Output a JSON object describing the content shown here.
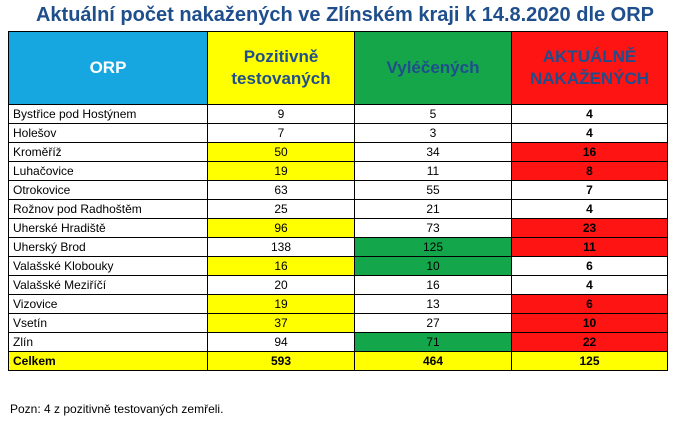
{
  "title": "Aktuální počet nakažených ve Zlínském kraji k 14.8.2020 dle ORP",
  "headers": {
    "orp": "ORP",
    "positive": "Pozitivně testovaných",
    "recovered": "Vyléčených",
    "active": "AKTUÁLNĚ NAKAŽENÝCH"
  },
  "colors": {
    "title": "#1f4e8c",
    "orp_header": "#16a7e1",
    "yellow": "#ffff00",
    "green": "#14a64a",
    "red": "#ff1414"
  },
  "rows": [
    {
      "name": "Bystřice pod Hostýnem",
      "positive": "9",
      "recovered": "5",
      "active": "4",
      "pos_hl": "",
      "rec_hl": "",
      "act_hl": ""
    },
    {
      "name": "Holešov",
      "positive": "7",
      "recovered": "3",
      "active": "4",
      "pos_hl": "",
      "rec_hl": "",
      "act_hl": ""
    },
    {
      "name": "Kroměříž",
      "positive": "50",
      "recovered": "34",
      "active": "16",
      "pos_hl": "yellow",
      "rec_hl": "",
      "act_hl": "red"
    },
    {
      "name": "Luhačovice",
      "positive": "19",
      "recovered": "11",
      "active": "8",
      "pos_hl": "yellow",
      "rec_hl": "",
      "act_hl": "red"
    },
    {
      "name": "Otrokovice",
      "positive": "63",
      "recovered": "55",
      "active": "7",
      "pos_hl": "",
      "rec_hl": "",
      "act_hl": ""
    },
    {
      "name": "Rožnov pod Radhoštěm",
      "positive": "25",
      "recovered": "21",
      "active": "4",
      "pos_hl": "",
      "rec_hl": "",
      "act_hl": ""
    },
    {
      "name": "Uherské Hradiště",
      "positive": "96",
      "recovered": "73",
      "active": "23",
      "pos_hl": "yellow",
      "rec_hl": "",
      "act_hl": "red"
    },
    {
      "name": "Uherský Brod",
      "positive": "138",
      "recovered": "125",
      "active": "11",
      "pos_hl": "",
      "rec_hl": "green",
      "act_hl": "red"
    },
    {
      "name": "Valašské Klobouky",
      "positive": "16",
      "recovered": "10",
      "active": "6",
      "pos_hl": "yellow",
      "rec_hl": "green",
      "act_hl": ""
    },
    {
      "name": "Valašské Meziříčí",
      "positive": "20",
      "recovered": "16",
      "active": "4",
      "pos_hl": "",
      "rec_hl": "",
      "act_hl": ""
    },
    {
      "name": "Vizovice",
      "positive": "19",
      "recovered": "13",
      "active": "6",
      "pos_hl": "yellow",
      "rec_hl": "",
      "act_hl": "red"
    },
    {
      "name": "Vsetín",
      "positive": "37",
      "recovered": "27",
      "active": "10",
      "pos_hl": "yellow",
      "rec_hl": "",
      "act_hl": "red"
    },
    {
      "name": "Zlín",
      "positive": "94",
      "recovered": "71",
      "active": "22",
      "pos_hl": "",
      "rec_hl": "green",
      "act_hl": "red"
    }
  ],
  "total": {
    "name": "Celkem",
    "positive": "593",
    "recovered": "464",
    "active": "125"
  },
  "note": "Pozn: 4 z pozitivně testovaných zemřeli."
}
